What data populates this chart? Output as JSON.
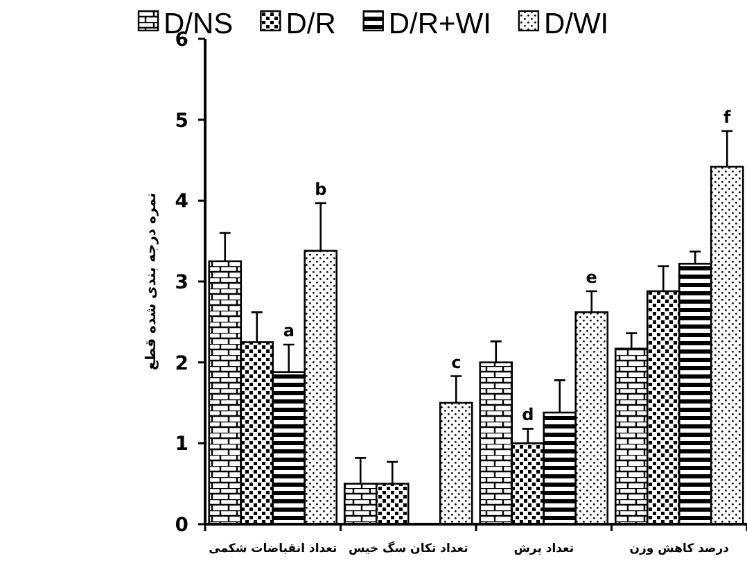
{
  "chart_data": {
    "type": "bar",
    "ylabel": "نمره درجه بندی شده قطع",
    "categories": [
      "تعداد انقباضات شکمی",
      "تعداد تکان سگ خیس",
      "تعداد پرش",
      "درصد کاهش وزن"
    ],
    "series": [
      {
        "name": "D/NS",
        "values": [
          3.25,
          0.5,
          2.0,
          2.17
        ],
        "errors": [
          [
            3.25,
            3.6
          ],
          [
            0.5,
            0.82
          ],
          [
            2.0,
            2.26
          ],
          [
            2.17,
            2.36
          ]
        ]
      },
      {
        "name": "D/R",
        "values": [
          2.25,
          0.5,
          1.0,
          2.88
        ],
        "errors": [
          [
            2.25,
            2.62
          ],
          [
            0.5,
            0.77
          ],
          [
            1.0,
            1.18
          ],
          [
            2.88,
            3.19
          ]
        ],
        "value_labels": [
          null,
          null,
          "d",
          null
        ]
      },
      {
        "name": "D/R+WI",
        "values": [
          1.88,
          null,
          1.38,
          3.22
        ],
        "errors": [
          [
            1.88,
            2.22
          ],
          null,
          [
            1.38,
            1.78
          ],
          [
            3.22,
            3.37
          ]
        ],
        "value_labels": [
          "a",
          null,
          null,
          null
        ]
      },
      {
        "name": "D/WI",
        "values": [
          3.38,
          1.5,
          2.62,
          4.42
        ],
        "errors": [
          [
            3.38,
            3.97
          ],
          [
            1.5,
            1.83
          ],
          [
            2.62,
            2.88
          ],
          [
            4.42,
            4.86
          ]
        ],
        "value_labels": [
          "b",
          "c",
          "e",
          "f"
        ]
      }
    ],
    "ylim": [
      0,
      6
    ],
    "yticks": [
      0,
      1,
      2,
      3,
      4,
      5,
      6
    ],
    "legend": "top",
    "grid": false
  }
}
